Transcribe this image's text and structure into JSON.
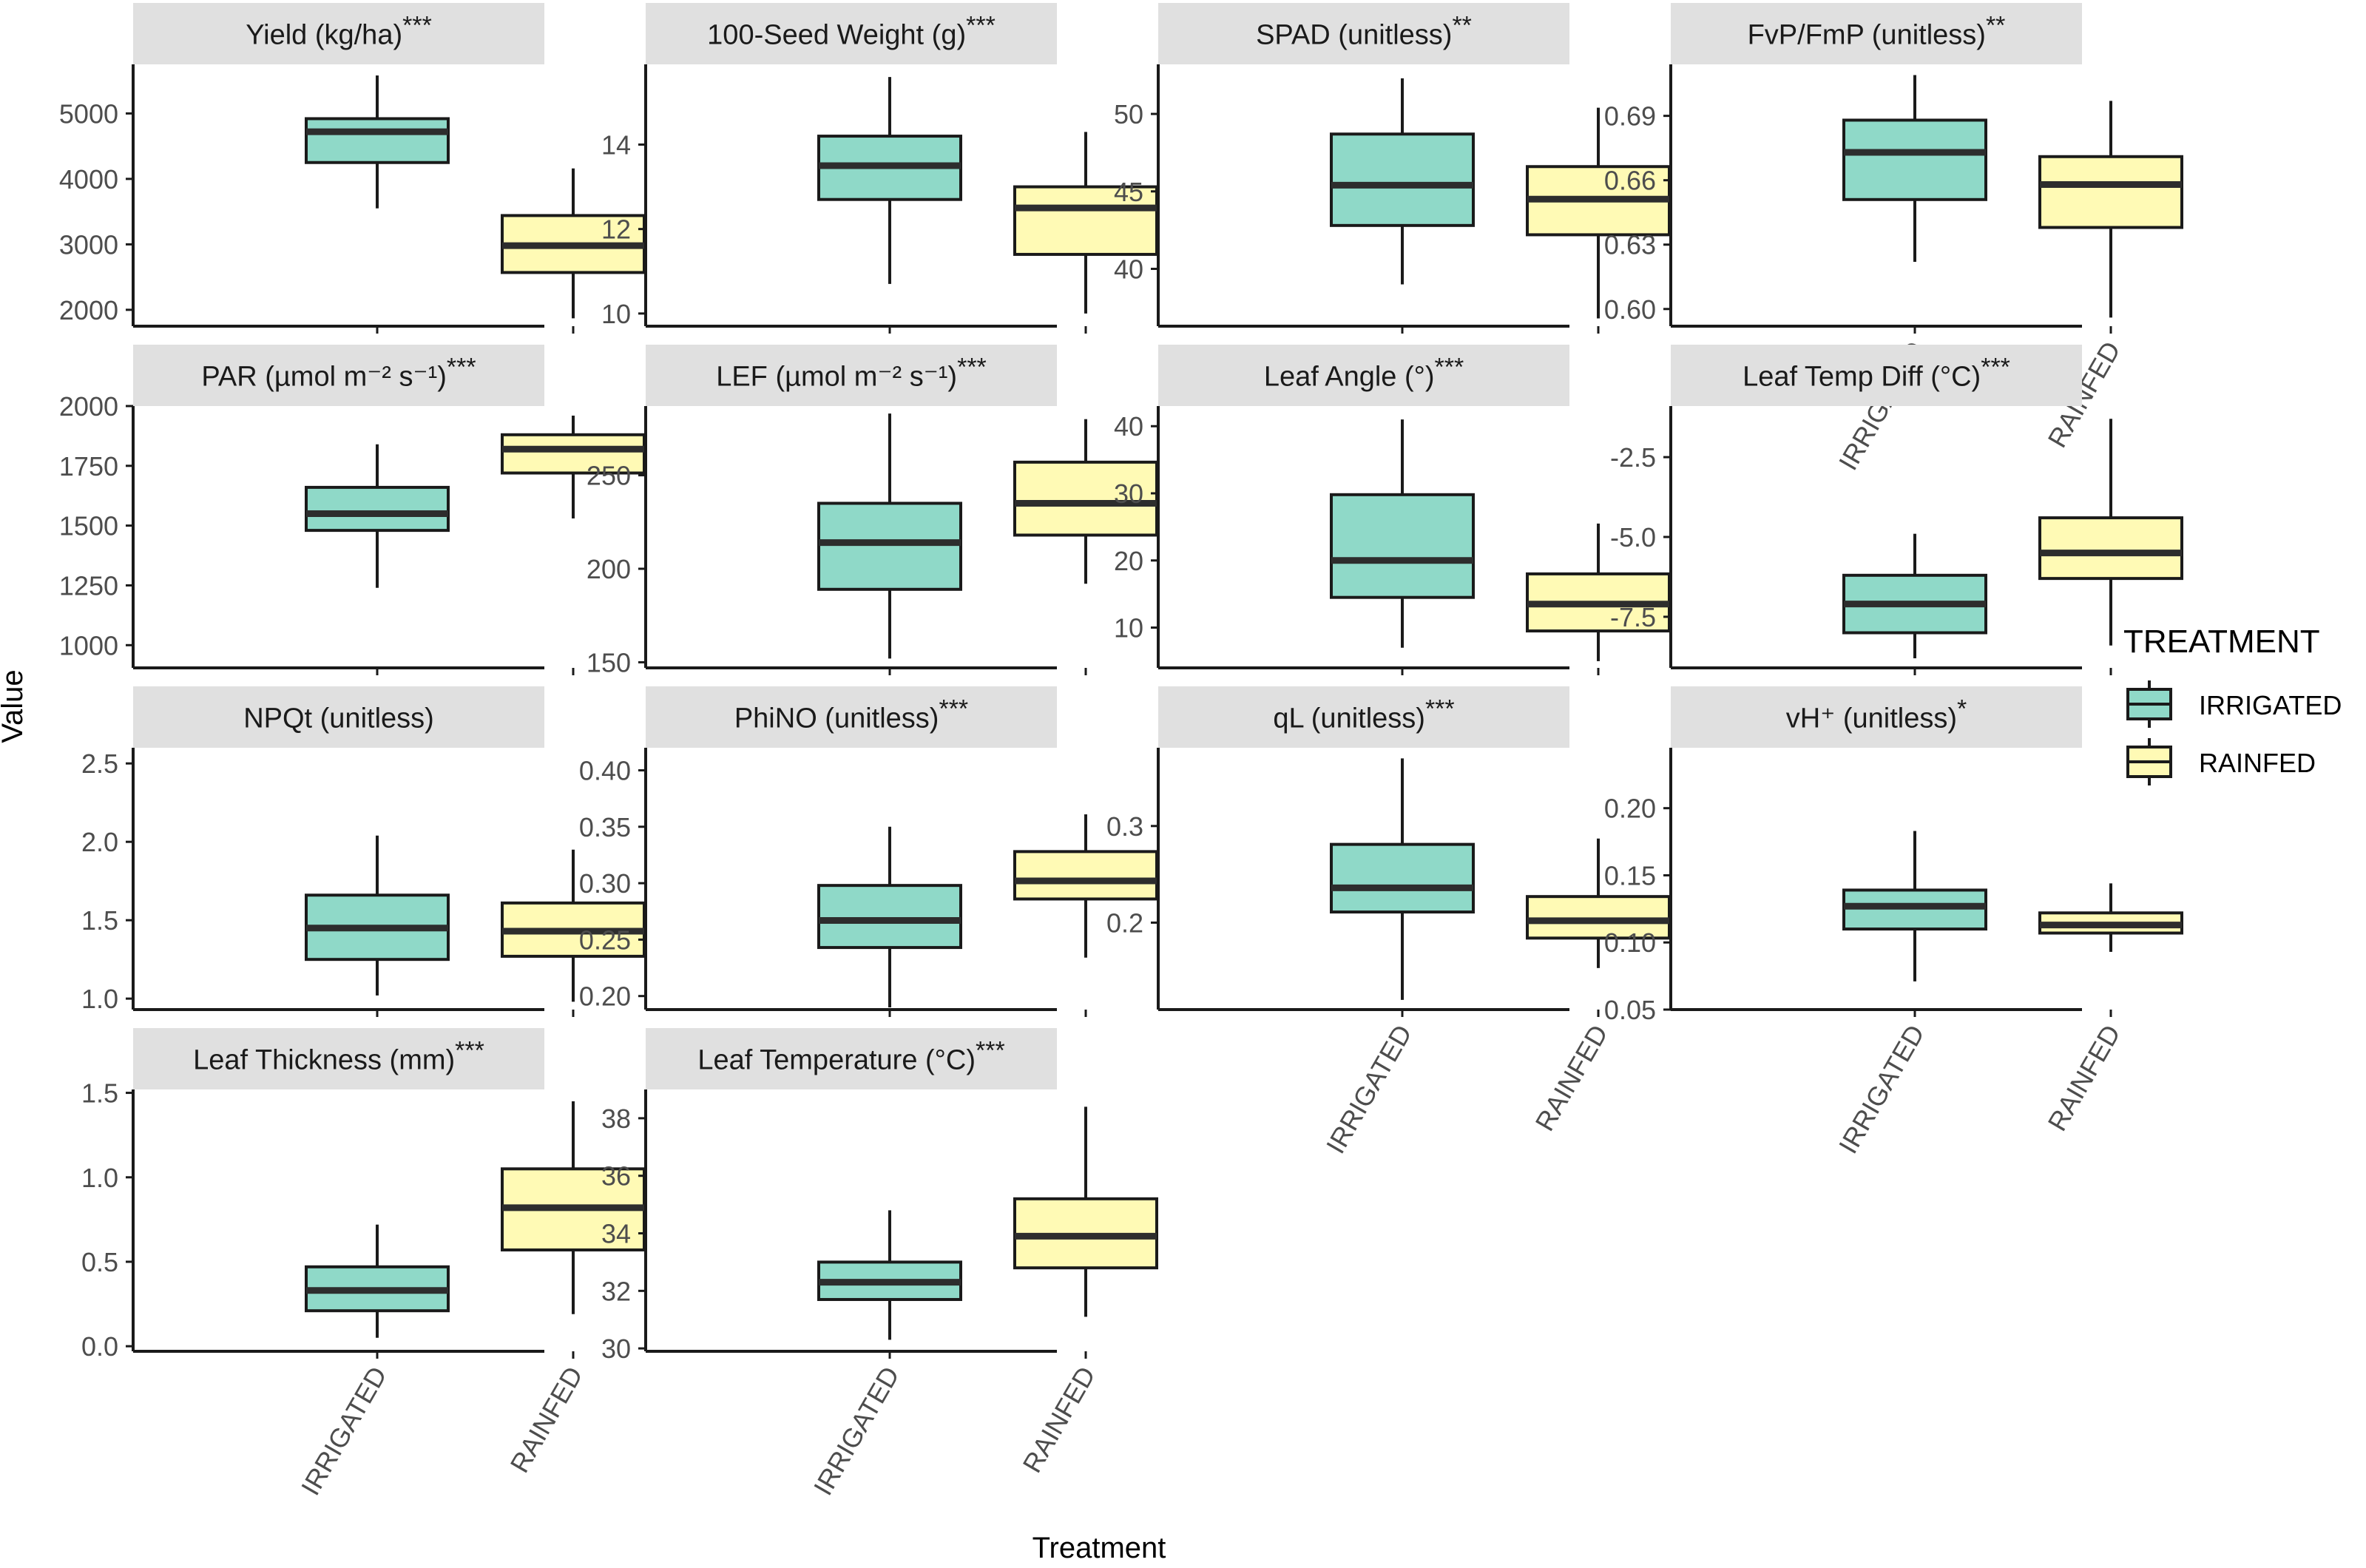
{
  "figure": {
    "y_axis_title": "Value",
    "x_axis_title": "Treatment",
    "legend": {
      "title": "TREATMENT",
      "entries": [
        {
          "label": "IRRIGATED",
          "color": "#8fd9c8"
        },
        {
          "label": "RAINFED",
          "color": "#fffab5"
        }
      ]
    },
    "colors": {
      "irrigated_fill": "#8fd9c8",
      "rainfed_fill": "#fffab5",
      "strip_fill": "#e0e0e0",
      "line": "#1a1a1a",
      "median": "#2d2d2d",
      "tick_text": "#4d4d4d"
    }
  },
  "chart_data": [
    {
      "type": "box",
      "title": "Yield (kg/ha)",
      "signif": "***",
      "categories": [
        "IRRIGATED",
        "RAINFED"
      ],
      "ylim": [
        1750,
        5750
      ],
      "ticks": [
        2000,
        3000,
        4000,
        5000
      ],
      "tick_labels": [
        "2000",
        "3000",
        "4000",
        "5000"
      ],
      "boxes": [
        {
          "min": 3550,
          "q1": 4250,
          "median": 4720,
          "q3": 4920,
          "max": 5580
        },
        {
          "min": 1870,
          "q1": 2570,
          "median": 2980,
          "q3": 3440,
          "max": 4160
        }
      ],
      "show_x_labels": false
    },
    {
      "type": "box",
      "title": "100-Seed Weight (g)",
      "signif": "***",
      "categories": [
        "IRRIGATED",
        "RAINFED"
      ],
      "ylim": [
        9.7,
        15.9
      ],
      "ticks": [
        10,
        12,
        14
      ],
      "tick_labels": [
        "10",
        "12",
        "14"
      ],
      "boxes": [
        {
          "min": 10.7,
          "q1": 12.7,
          "median": 13.5,
          "q3": 14.2,
          "max": 15.6
        },
        {
          "min": 10.0,
          "q1": 11.4,
          "median": 12.5,
          "q3": 13.0,
          "max": 14.3
        }
      ],
      "show_x_labels": false
    },
    {
      "type": "box",
      "title": "SPAD (unitless)",
      "signif": "**",
      "categories": [
        "IRRIGATED",
        "RAINFED"
      ],
      "ylim": [
        36.3,
        53.2
      ],
      "ticks": [
        40,
        45,
        50
      ],
      "tick_labels": [
        "40",
        "45",
        "50"
      ],
      "boxes": [
        {
          "min": 39.0,
          "q1": 42.8,
          "median": 45.4,
          "q3": 48.7,
          "max": 52.3
        },
        {
          "min": 36.8,
          "q1": 42.2,
          "median": 44.5,
          "q3": 46.6,
          "max": 50.4
        }
      ],
      "show_x_labels": false
    },
    {
      "type": "box",
      "title": "FvP/FmP (unitless)",
      "signif": "**",
      "categories": [
        "IRRIGATED",
        "RAINFED"
      ],
      "ylim": [
        0.592,
        0.714
      ],
      "ticks": [
        0.6,
        0.63,
        0.66,
        0.69
      ],
      "tick_labels": [
        "0.60",
        "0.63",
        "0.66",
        "0.69"
      ],
      "boxes": [
        {
          "min": 0.622,
          "q1": 0.651,
          "median": 0.673,
          "q3": 0.688,
          "max": 0.709
        },
        {
          "min": 0.596,
          "q1": 0.638,
          "median": 0.658,
          "q3": 0.671,
          "max": 0.697
        }
      ],
      "show_x_labels": true
    },
    {
      "type": "box",
      "title": "PAR (µmol m⁻² s⁻¹)",
      "signif": "***",
      "categories": [
        "IRRIGATED",
        "RAINFED"
      ],
      "ylim": [
        905,
        2000
      ],
      "ticks": [
        1000,
        1250,
        1500,
        1750,
        2000
      ],
      "tick_labels": [
        "1000",
        "1250",
        "1500",
        "1750",
        "2000"
      ],
      "boxes": [
        {
          "min": 1240,
          "q1": 1480,
          "median": 1550,
          "q3": 1660,
          "max": 1840
        },
        {
          "min": 1530,
          "q1": 1720,
          "median": 1820,
          "q3": 1880,
          "max": 1960
        }
      ],
      "show_x_labels": false
    },
    {
      "type": "box",
      "title": "LEF (µmol m⁻² s⁻¹)",
      "signif": "***",
      "categories": [
        "IRRIGATED",
        "RAINFED"
      ],
      "ylim": [
        147,
        287
      ],
      "ticks": [
        150,
        200,
        250
      ],
      "tick_labels": [
        "150",
        "200",
        "250"
      ],
      "boxes": [
        {
          "min": 152,
          "q1": 189,
          "median": 214,
          "q3": 235,
          "max": 283
        },
        {
          "min": 192,
          "q1": 218,
          "median": 235,
          "q3": 257,
          "max": 280
        }
      ],
      "show_x_labels": false
    },
    {
      "type": "box",
      "title": "Leaf Angle (°)",
      "signif": "***",
      "categories": [
        "IRRIGATED",
        "RAINFED"
      ],
      "ylim": [
        4,
        43
      ],
      "ticks": [
        10,
        20,
        30,
        40
      ],
      "tick_labels": [
        "10",
        "20",
        "30",
        "40"
      ],
      "boxes": [
        {
          "min": 7,
          "q1": 14.5,
          "median": 20,
          "q3": 29.8,
          "max": 41
        },
        {
          "min": 5,
          "q1": 9.5,
          "median": 13.5,
          "q3": 18,
          "max": 25.5
        }
      ],
      "show_x_labels": false
    },
    {
      "type": "box",
      "title": "Leaf Temp Diff (°C)",
      "signif": "***",
      "categories": [
        "IRRIGATED",
        "RAINFED"
      ],
      "ylim": [
        -9.1,
        -0.9
      ],
      "ticks": [
        -7.5,
        -5.0,
        -2.5
      ],
      "tick_labels": [
        "-7.5",
        "-5.0",
        "-2.5"
      ],
      "boxes": [
        {
          "min": -8.8,
          "q1": -8.0,
          "median": -7.1,
          "q3": -6.2,
          "max": -4.9
        },
        {
          "min": -8.4,
          "q1": -6.3,
          "median": -5.5,
          "q3": -4.4,
          "max": -1.3
        }
      ],
      "show_x_labels": false
    },
    {
      "type": "box",
      "title": "NPQt (unitless)",
      "signif": "",
      "categories": [
        "IRRIGATED",
        "RAINFED"
      ],
      "ylim": [
        0.93,
        2.6
      ],
      "ticks": [
        1.0,
        1.5,
        2.0,
        2.5
      ],
      "tick_labels": [
        "1.0",
        "1.5",
        "2.0",
        "2.5"
      ],
      "boxes": [
        {
          "min": 1.02,
          "q1": 1.25,
          "median": 1.45,
          "q3": 1.66,
          "max": 2.04
        },
        {
          "min": 0.98,
          "q1": 1.27,
          "median": 1.43,
          "q3": 1.61,
          "max": 1.95
        }
      ],
      "show_x_labels": false
    },
    {
      "type": "box",
      "title": "PhiNO (unitless)",
      "signif": "***",
      "categories": [
        "IRRIGATED",
        "RAINFED"
      ],
      "ylim": [
        0.188,
        0.42
      ],
      "ticks": [
        0.2,
        0.25,
        0.3,
        0.35,
        0.4
      ],
      "tick_labels": [
        "0.20",
        "0.25",
        "0.30",
        "0.35",
        "0.40"
      ],
      "boxes": [
        {
          "min": 0.19,
          "q1": 0.243,
          "median": 0.267,
          "q3": 0.298,
          "max": 0.35
        },
        {
          "min": 0.234,
          "q1": 0.286,
          "median": 0.302,
          "q3": 0.328,
          "max": 0.361
        }
      ],
      "show_x_labels": false
    },
    {
      "type": "box",
      "title": "qL (unitless)",
      "signif": "***",
      "categories": [
        "IRRIGATED",
        "RAINFED"
      ],
      "ylim": [
        0.11,
        0.381
      ],
      "ticks": [
        0.2,
        0.3
      ],
      "tick_labels": [
        "0.2",
        "0.3"
      ],
      "boxes": [
        {
          "min": 0.12,
          "q1": 0.211,
          "median": 0.236,
          "q3": 0.281,
          "max": 0.37
        },
        {
          "min": 0.153,
          "q1": 0.184,
          "median": 0.202,
          "q3": 0.227,
          "max": 0.287
        }
      ],
      "show_x_labels": true
    },
    {
      "type": "box",
      "title": "vH⁺ (unitless)",
      "signif": "*",
      "categories": [
        "IRRIGATED",
        "RAINFED"
      ],
      "ylim": [
        0.05,
        0.245
      ],
      "ticks": [
        0.05,
        0.1,
        0.15,
        0.2
      ],
      "tick_labels": [
        "0.05",
        "0.10",
        "0.15",
        "0.20"
      ],
      "boxes": [
        {
          "min": 0.071,
          "q1": 0.11,
          "median": 0.127,
          "q3": 0.139,
          "max": 0.183
        },
        {
          "min": 0.093,
          "q1": 0.107,
          "median": 0.113,
          "q3": 0.122,
          "max": 0.144
        }
      ],
      "show_x_labels": true
    },
    {
      "type": "box",
      "title": "Leaf Thickness (mm)",
      "signif": "***",
      "categories": [
        "IRRIGATED",
        "RAINFED"
      ],
      "ylim": [
        -0.03,
        1.52
      ],
      "ticks": [
        0.0,
        0.5,
        1.0,
        1.5
      ],
      "tick_labels": [
        "0.0",
        "0.5",
        "1.0",
        "1.5"
      ],
      "boxes": [
        {
          "min": 0.05,
          "q1": 0.21,
          "median": 0.33,
          "q3": 0.47,
          "max": 0.72
        },
        {
          "min": 0.19,
          "q1": 0.57,
          "median": 0.82,
          "q3": 1.05,
          "max": 1.45
        }
      ],
      "show_x_labels": true
    },
    {
      "type": "box",
      "title": "Leaf Temperature (°C)",
      "signif": "***",
      "categories": [
        "IRRIGATED",
        "RAINFED"
      ],
      "ylim": [
        29.9,
        39.0
      ],
      "ticks": [
        30,
        32,
        34,
        36,
        38
      ],
      "tick_labels": [
        "30",
        "32",
        "34",
        "36",
        "38"
      ],
      "boxes": [
        {
          "min": 30.3,
          "q1": 31.7,
          "median": 32.3,
          "q3": 33.0,
          "max": 34.8
        },
        {
          "min": 31.1,
          "q1": 32.8,
          "median": 33.9,
          "q3": 35.2,
          "max": 38.4
        }
      ],
      "show_x_labels": true
    }
  ]
}
